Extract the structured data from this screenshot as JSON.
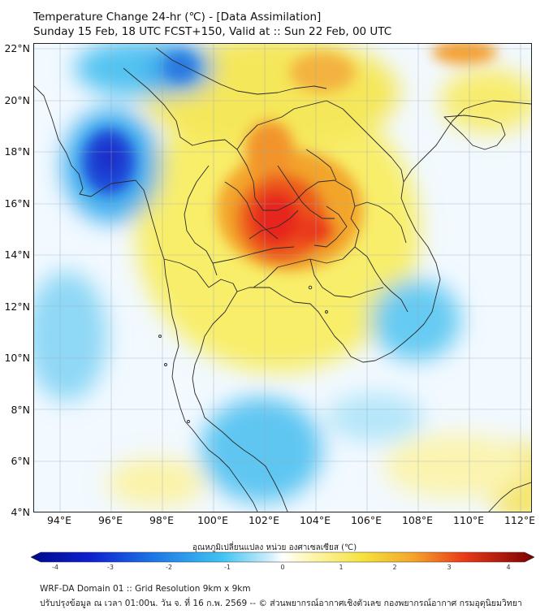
{
  "header": {
    "title": "Temperature Change 24-hr (℃) - [Data Assimilation]",
    "subtitle": "Sunday 15 Feb, 18 UTC FCST+150, Valid at :: Sun 22 Feb, 00 UTC"
  },
  "map": {
    "lat_labels": [
      "22°N",
      "20°N",
      "18°N",
      "16°N",
      "14°N",
      "12°N",
      "10°N",
      "8°N",
      "6°N",
      "4°N"
    ],
    "lon_labels": [
      "94°E",
      "96°E",
      "98°E",
      "100°E",
      "102°E",
      "104°E",
      "106°E",
      "108°E",
      "110°E",
      "112°E"
    ],
    "colors": {
      "cold_strong": "#1a3cd6",
      "cold": "#3fb4ee",
      "neutral": "#ffffff",
      "warm": "#f5e63c",
      "hot": "#f08c1e",
      "very_hot": "#e8261a"
    }
  },
  "colorbar": {
    "title": "อุณหภูมิเปลี่ยนแปลง หน่วย องศาเซลเซียส (℃)",
    "ticks": [
      "-4",
      "-3",
      "-2",
      "-1",
      "0",
      "1",
      "2",
      "3",
      "4"
    ]
  },
  "footer": {
    "line1": "WRF-DA Domain 01 :: Grid Resolution 9km x 9km",
    "line2": "ปรับปรุงข้อมูล ณ เวลา 01:00น. วัน จ. ที่ 16 ก.พ. 2569 -- © ส่วนพยากรณ์อากาศเชิงตัวเลข กองพยากรณ์อากาศ กรมอุตุนิยมวิทยา"
  }
}
